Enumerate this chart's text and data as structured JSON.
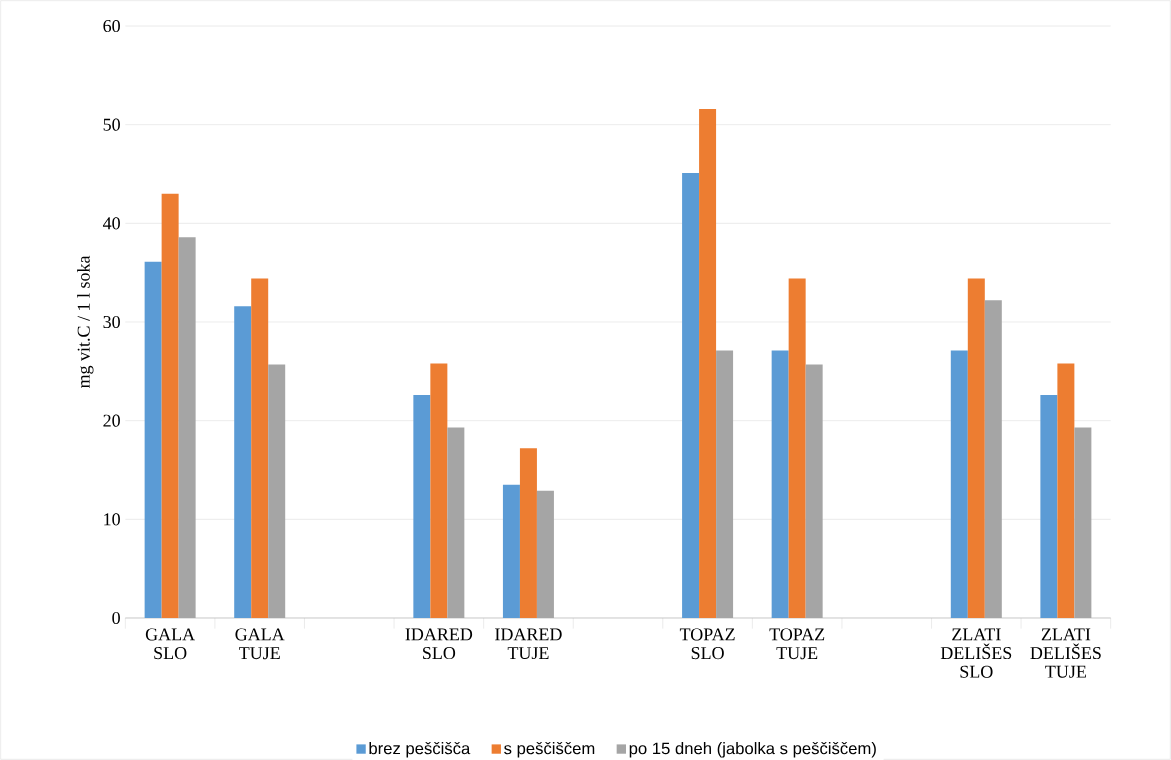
{
  "chart_data": {
    "type": "bar",
    "ylabel": "mg vit.C / 1 l soka",
    "categories": [
      "GALA SLO",
      "GALA TUJE",
      null,
      "IDARED SLO",
      "IDARED TUJE",
      null,
      "TOPAZ SLO",
      "TOPAZ TUJE",
      null,
      "ZLATI DELIŠES SLO",
      "ZLATI DELIŠES TUJE"
    ],
    "series": [
      {
        "name": "brez peščišča",
        "color": "#5b9bd5",
        "values": [
          36.1,
          31.6,
          null,
          22.6,
          13.5,
          null,
          45.1,
          27.1,
          null,
          27.1,
          22.6
        ]
      },
      {
        "name": "s peščiščem",
        "color": "#ed7d31",
        "values": [
          43.0,
          34.4,
          null,
          25.8,
          17.2,
          null,
          51.6,
          34.4,
          null,
          34.4,
          25.8
        ]
      },
      {
        "name": "po 15 dneh (jabolka s peščiščem)",
        "color": "#a5a5a5",
        "values": [
          38.6,
          25.7,
          null,
          19.3,
          12.9,
          null,
          27.1,
          25.7,
          null,
          32.2,
          19.3
        ]
      }
    ],
    "ylim": [
      0,
      60
    ],
    "yticks": [
      0,
      10,
      20,
      30,
      40,
      50,
      60
    ],
    "grid": "y",
    "legend": "bottom"
  }
}
